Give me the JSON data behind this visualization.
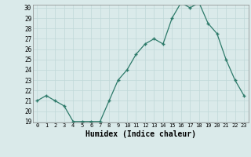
{
  "x": [
    0,
    1,
    2,
    3,
    4,
    5,
    6,
    7,
    8,
    9,
    10,
    11,
    12,
    13,
    14,
    15,
    16,
    17,
    18,
    19,
    20,
    21,
    22,
    23
  ],
  "y": [
    21.0,
    21.5,
    21.0,
    20.5,
    19.0,
    19.0,
    19.0,
    19.0,
    21.0,
    23.0,
    24.0,
    25.5,
    26.5,
    27.0,
    26.5,
    29.0,
    30.5,
    30.0,
    30.5,
    28.5,
    27.5,
    25.0,
    23.0,
    21.5
  ],
  "xlabel": "Humidex (Indice chaleur)",
  "ylim": [
    19,
    30
  ],
  "xlim": [
    -0.5,
    23.5
  ],
  "yticks": [
    19,
    20,
    21,
    22,
    23,
    24,
    25,
    26,
    27,
    28,
    29,
    30
  ],
  "xticks": [
    0,
    1,
    2,
    3,
    4,
    5,
    6,
    7,
    8,
    9,
    10,
    11,
    12,
    13,
    14,
    15,
    16,
    17,
    18,
    19,
    20,
    21,
    22,
    23
  ],
  "xtick_labels": [
    "0",
    "1",
    "2",
    "3",
    "4",
    "5",
    "6",
    "7",
    "8",
    "9",
    "10",
    "11",
    "12",
    "13",
    "14",
    "15",
    "16",
    "17",
    "18",
    "19",
    "20",
    "21",
    "22",
    "23"
  ],
  "line_color": "#2d7a6a",
  "marker_color": "#2d7a6a",
  "bg_color": "#daeaea",
  "grid_color": "#c0d8d8"
}
